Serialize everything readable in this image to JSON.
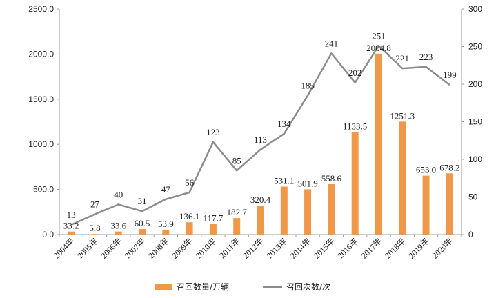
{
  "chart_data": {
    "type": "bar",
    "categories": [
      "2004年",
      "2005年",
      "2006年",
      "2007年",
      "2008年",
      "2009年",
      "2010年",
      "2011年",
      "2012年",
      "2013年",
      "2014年",
      "2015年",
      "2016年",
      "2017年",
      "2018年",
      "2019年",
      "2020年"
    ],
    "series": [
      {
        "name": "召回数量/万辆",
        "type": "bar",
        "axis": "left",
        "color": "#F0984A",
        "values": [
          33.2,
          5.8,
          33.6,
          60.5,
          53.9,
          136.1,
          117.7,
          182.7,
          320.4,
          531.1,
          501.9,
          558.6,
          1133.5,
          2004.8,
          1251.3,
          653.0,
          678.2
        ],
        "labels": [
          "33.2",
          "5.8",
          "33.6",
          "60.5",
          "53.9",
          "136.1",
          "117.7",
          "182.7",
          "320.4",
          "531.1",
          "501.9",
          "558.6",
          "1133.5",
          "2004.8",
          "1251.3",
          "653.0",
          "678.2"
        ]
      },
      {
        "name": "召回次数/次",
        "type": "line",
        "axis": "right",
        "color": "#8C8C8C",
        "values": [
          13,
          27,
          40,
          31,
          47,
          56,
          123,
          85,
          113,
          134,
          185,
          241,
          202,
          251,
          221,
          223,
          199
        ],
        "labels": [
          "13",
          "27",
          "40",
          "31",
          "47",
          "56",
          "123",
          "85",
          "113",
          "134",
          "185",
          "241",
          "202",
          "251",
          "221",
          "223",
          "199"
        ]
      }
    ],
    "left_axis": {
      "range": [
        0,
        2500
      ],
      "ticks": [
        0,
        500,
        1000,
        1500,
        2000,
        2500
      ],
      "tick_labels": [
        "0.0",
        "500.0",
        "1000.0",
        "1500.0",
        "2000.0",
        "2500.0"
      ]
    },
    "right_axis": {
      "range": [
        0,
        300
      ],
      "ticks": [
        0,
        50,
        100,
        150,
        200,
        250,
        300
      ],
      "tick_labels": [
        "0",
        "50",
        "100",
        "150",
        "200",
        "250",
        "300"
      ]
    },
    "grid": false,
    "legend": "bottom"
  }
}
